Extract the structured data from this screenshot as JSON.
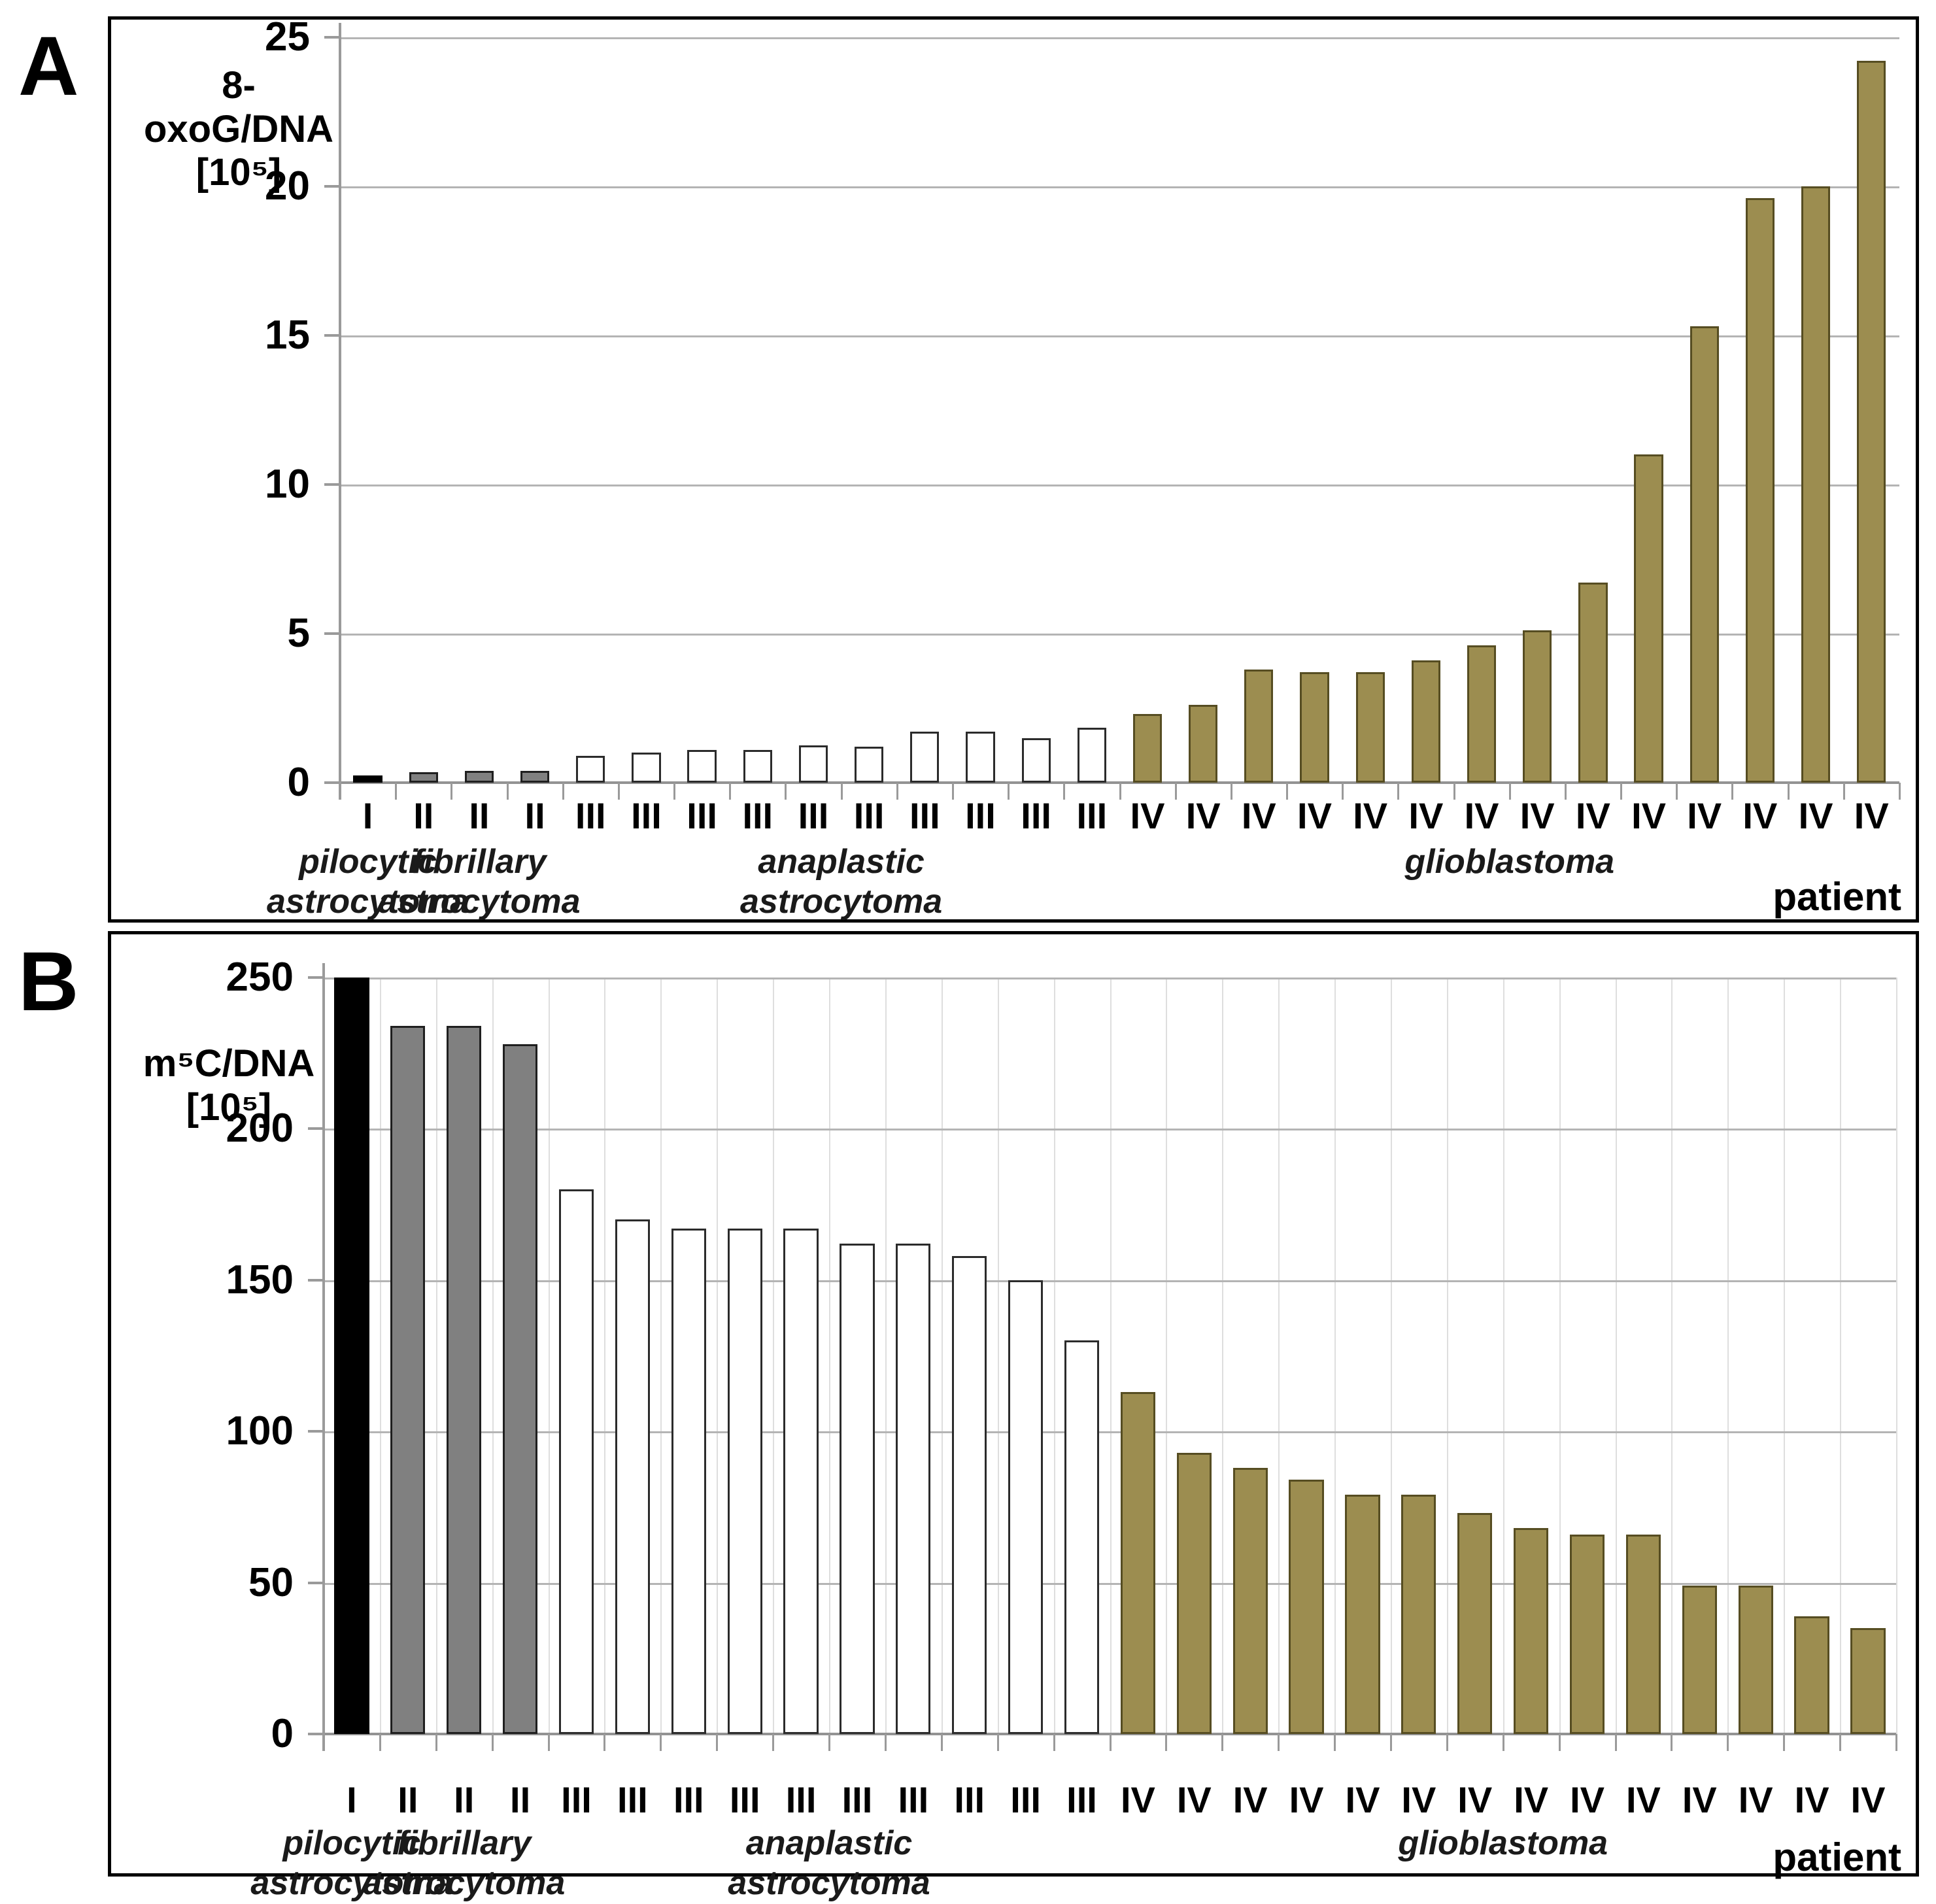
{
  "figure": {
    "panels": [
      {
        "letter": "A"
      },
      {
        "letter": "B"
      }
    ]
  },
  "colors": {
    "grade_I_fill": "#000000",
    "grade_I_border": "#000000",
    "grade_II_fill": "#808080",
    "grade_II_border": "#1f1f1f",
    "grade_III_fill": "#ffffff",
    "grade_III_border": "#2b2b2b",
    "grade_IV_fill": "#9c8d50",
    "grade_IV_border": "#564d22",
    "gridline": "#b4b4b4",
    "axis": "#9a9a9a"
  },
  "chart_data": [
    {
      "type": "bar",
      "panel": "A",
      "ylabel_lines": [
        "8-oxoG/DNA",
        "[10⁵]"
      ],
      "xlabel": "patient",
      "ylim": [
        0,
        25
      ],
      "yticks": [
        25,
        20,
        15,
        10,
        5,
        0
      ],
      "grid": "horizontal",
      "groups": [
        {
          "grade": "I",
          "category_lines": [
            "pilocytic",
            "astrocytoma"
          ],
          "values": [
            0.25
          ]
        },
        {
          "grade": "II",
          "category_lines": [
            "fibrillary",
            "astrocytoma"
          ],
          "values": [
            0.35,
            0.4,
            0.4
          ]
        },
        {
          "grade": "III",
          "category_lines": [
            "anaplastic",
            "astrocytoma"
          ],
          "values": [
            0.9,
            1.0,
            1.1,
            1.1,
            1.25,
            1.2,
            1.7,
            1.7,
            1.5,
            1.85
          ]
        },
        {
          "grade": "IV",
          "category_lines": [
            "glioblastoma"
          ],
          "values": [
            2.3,
            2.6,
            3.8,
            3.7,
            3.7,
            4.1,
            4.6,
            5.1,
            6.7,
            11.0,
            15.3,
            19.6,
            20.0,
            24.2
          ]
        }
      ]
    },
    {
      "type": "bar",
      "panel": "B",
      "ylabel_lines": [
        "m⁵C/DNA",
        "[10⁵]"
      ],
      "xlabel": "patient",
      "ylim": [
        0,
        250
      ],
      "yticks": [
        250,
        200,
        150,
        100,
        50,
        0
      ],
      "grid": "horizontal",
      "groups": [
        {
          "grade": "I",
          "category_lines": [
            "pilocytic",
            "astrocytoma"
          ],
          "values": [
            250
          ]
        },
        {
          "grade": "II",
          "category_lines": [
            "fibrillary",
            "astrocytoma"
          ],
          "values": [
            234,
            234,
            228
          ]
        },
        {
          "grade": "III",
          "category_lines": [
            "anaplastic",
            "astrocytoma"
          ],
          "values": [
            180,
            170,
            167,
            167,
            167,
            162,
            162,
            158,
            150,
            130
          ]
        },
        {
          "grade": "IV",
          "category_lines": [
            "glioblastoma"
          ],
          "values": [
            113,
            93,
            88,
            84,
            79,
            79,
            73,
            68,
            66,
            66,
            49,
            49,
            39,
            35
          ]
        }
      ]
    }
  ]
}
